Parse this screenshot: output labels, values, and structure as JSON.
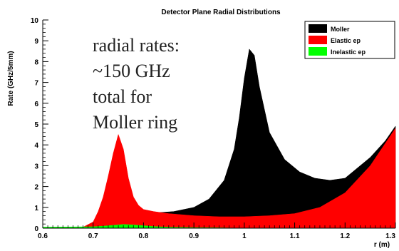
{
  "chart_data": {
    "type": "area",
    "title": "Detector Plane Radial Distributions",
    "xlabel": "r (m)",
    "ylabel": "Rate (GHz/5mm)",
    "xlim": [
      0.6,
      1.3
    ],
    "ylim": [
      0,
      10
    ],
    "x_ticks": [
      "0.6",
      "0.7",
      "0.8",
      "0.9",
      "1",
      "1.1",
      "1.2",
      "1.3"
    ],
    "y_ticks": [
      "0",
      "1",
      "2",
      "3",
      "4",
      "5",
      "6",
      "7",
      "8",
      "9",
      "10"
    ],
    "legend_position": "top-right",
    "grid": false,
    "annotation": [
      "radial rates:",
      "~150 GHz",
      "total for",
      "Moller ring"
    ],
    "series": [
      {
        "name": "Moller",
        "color": "#000000",
        "x": [
          0.83,
          0.86,
          0.9,
          0.93,
          0.96,
          0.98,
          0.99,
          1.0,
          1.01,
          1.02,
          1.03,
          1.05,
          1.08,
          1.11,
          1.14,
          1.17,
          1.2,
          1.22,
          1.25,
          1.28,
          1.3
        ],
        "values": [
          0.75,
          0.8,
          1.0,
          1.4,
          2.3,
          3.8,
          5.3,
          7.2,
          8.6,
          8.3,
          6.8,
          4.6,
          3.3,
          2.7,
          2.4,
          2.3,
          2.4,
          2.8,
          3.4,
          4.2,
          4.9
        ]
      },
      {
        "name": "Elastic ep",
        "color": "#ff0000",
        "x": [
          0.6,
          0.66,
          0.68,
          0.7,
          0.71,
          0.72,
          0.73,
          0.74,
          0.75,
          0.76,
          0.77,
          0.78,
          0.79,
          0.8,
          0.82,
          0.85,
          0.9,
          0.95,
          1.0,
          1.05,
          1.1,
          1.15,
          1.2,
          1.25,
          1.3
        ],
        "values": [
          0,
          0.02,
          0.05,
          0.3,
          0.8,
          1.5,
          2.5,
          3.6,
          4.5,
          3.8,
          2.4,
          1.5,
          1.1,
          0.9,
          0.8,
          0.7,
          0.6,
          0.55,
          0.55,
          0.6,
          0.7,
          1.0,
          1.7,
          3.0,
          4.8
        ]
      },
      {
        "name": "Inelastic ep",
        "color": "#00ff00",
        "x": [
          0.6,
          0.65,
          0.7,
          0.72,
          0.74,
          0.76,
          0.78,
          0.8,
          0.82,
          0.85,
          0.9,
          0.95,
          1.0
        ],
        "values": [
          0.05,
          0.06,
          0.07,
          0.1,
          0.14,
          0.18,
          0.16,
          0.12,
          0.08,
          0.05,
          0.03,
          0.02,
          0
        ]
      }
    ]
  }
}
